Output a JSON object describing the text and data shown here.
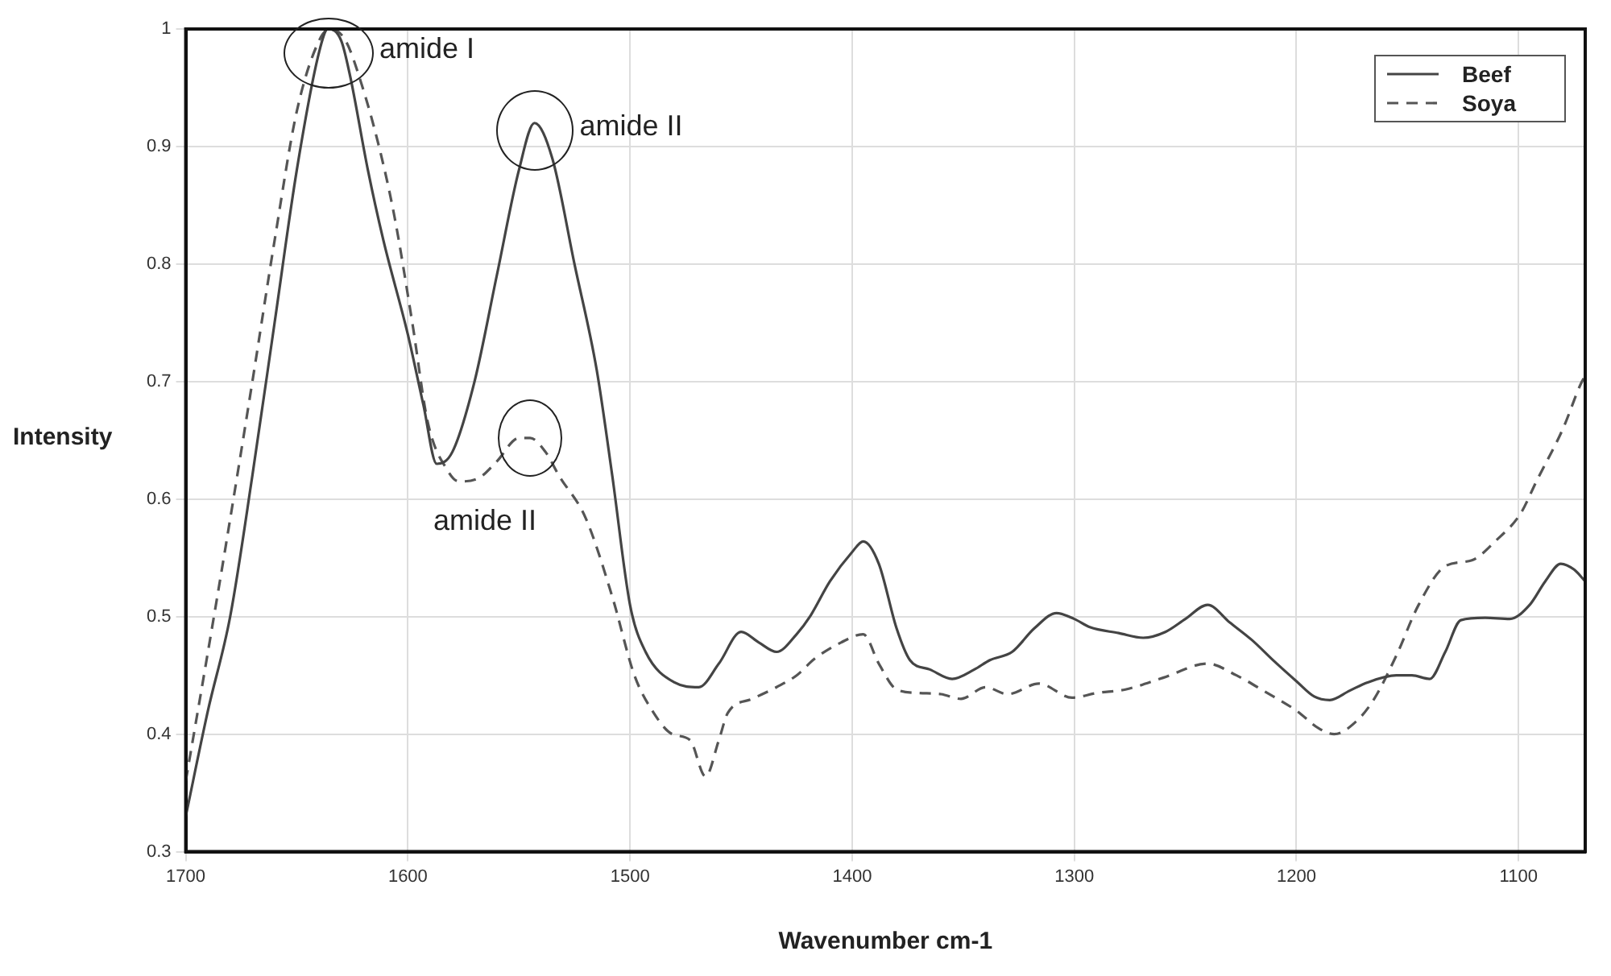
{
  "chart_data": {
    "type": "line",
    "xlabel": "Wavenumber cm-1",
    "ylabel": "Intensity",
    "xlim": [
      1700,
      1070
    ],
    "xticks": [
      1700,
      1600,
      1500,
      1400,
      1300,
      1200,
      1100
    ],
    "ylim": [
      0.3,
      1
    ],
    "yticks": [
      0.3,
      0.4,
      0.5,
      0.6,
      0.7,
      0.8,
      0.9,
      1
    ],
    "grid": true,
    "legend": "top right",
    "marker": "none",
    "series": [
      {
        "name": "Beef",
        "color": "#444444",
        "line_style": "solid",
        "x": [
          1700,
          1690,
          1680,
          1670,
          1660,
          1650,
          1640,
          1636,
          1630,
          1626,
          1618,
          1611,
          1600,
          1593,
          1587,
          1580,
          1570,
          1560,
          1550,
          1543,
          1535,
          1525,
          1515,
          1508,
          1500,
          1493,
          1480,
          1469,
          1460,
          1450,
          1442,
          1434,
          1425,
          1419,
          1410,
          1400,
          1395,
          1388,
          1380,
          1374,
          1365,
          1355,
          1345,
          1338,
          1328,
          1318,
          1308,
          1300,
          1293,
          1280,
          1269,
          1259,
          1250,
          1240,
          1230,
          1220,
          1210,
          1200,
          1192,
          1185,
          1176,
          1168,
          1155,
          1148,
          1140,
          1133,
          1126,
          1115,
          1104,
          1095,
          1088,
          1081,
          1075,
          1070
        ],
        "values": [
          0.33,
          0.42,
          0.5,
          0.62,
          0.75,
          0.88,
          0.98,
          1.0,
          0.99,
          0.96,
          0.88,
          0.82,
          0.74,
          0.68,
          0.63,
          0.64,
          0.7,
          0.79,
          0.88,
          0.92,
          0.89,
          0.8,
          0.71,
          0.62,
          0.51,
          0.47,
          0.444,
          0.44,
          0.46,
          0.487,
          0.478,
          0.47,
          0.485,
          0.5,
          0.53,
          0.555,
          0.564,
          0.545,
          0.49,
          0.463,
          0.455,
          0.447,
          0.455,
          0.463,
          0.47,
          0.49,
          0.503,
          0.498,
          0.491,
          0.486,
          0.482,
          0.487,
          0.498,
          0.51,
          0.495,
          0.48,
          0.462,
          0.445,
          0.432,
          0.429,
          0.437,
          0.444,
          0.45,
          0.45,
          0.447,
          0.47,
          0.497,
          0.499,
          0.498,
          0.51,
          0.53,
          0.545,
          0.54,
          0.53
        ]
      },
      {
        "name": "Soya",
        "color": "#555555",
        "line_style": "dashed",
        "x": [
          1700,
          1690,
          1682,
          1670,
          1660,
          1650,
          1640,
          1635,
          1628,
          1621,
          1613,
          1606,
          1598,
          1591,
          1582,
          1577,
          1568,
          1560,
          1550,
          1545,
          1538,
          1532,
          1520,
          1508,
          1498,
          1490,
          1481,
          1473,
          1466,
          1460,
          1456,
          1445,
          1434,
          1425,
          1417,
          1405,
          1395,
          1388,
          1380,
          1370,
          1360,
          1351,
          1340,
          1330,
          1316,
          1301,
          1290,
          1277,
          1260,
          1240,
          1227,
          1214,
          1200,
          1190,
          1183,
          1173,
          1165,
          1155,
          1145,
          1133,
          1121,
          1110,
          1099,
          1092,
          1080,
          1072,
          1070
        ],
        "values": [
          0.36,
          0.47,
          0.56,
          0.7,
          0.82,
          0.93,
          0.99,
          1.0,
          0.99,
          0.954,
          0.9,
          0.84,
          0.75,
          0.665,
          0.624,
          0.615,
          0.618,
          0.632,
          0.652,
          0.652,
          0.64,
          0.62,
          0.584,
          0.517,
          0.45,
          0.42,
          0.4,
          0.395,
          0.364,
          0.395,
          0.418,
          0.43,
          0.44,
          0.45,
          0.464,
          0.478,
          0.485,
          0.46,
          0.438,
          0.435,
          0.434,
          0.43,
          0.44,
          0.434,
          0.443,
          0.431,
          0.435,
          0.438,
          0.448,
          0.46,
          0.45,
          0.436,
          0.42,
          0.405,
          0.4,
          0.411,
          0.43,
          0.467,
          0.51,
          0.543,
          0.548,
          0.565,
          0.588,
          0.615,
          0.66,
          0.698,
          0.705
        ]
      }
    ],
    "annotations": [
      {
        "text": "amide I",
        "x": 1636,
        "y": 0.98
      },
      {
        "text": "amide II",
        "x": 1543,
        "y": 0.913
      },
      {
        "text": "amide II",
        "x": 1545,
        "y": 0.652
      }
    ]
  }
}
